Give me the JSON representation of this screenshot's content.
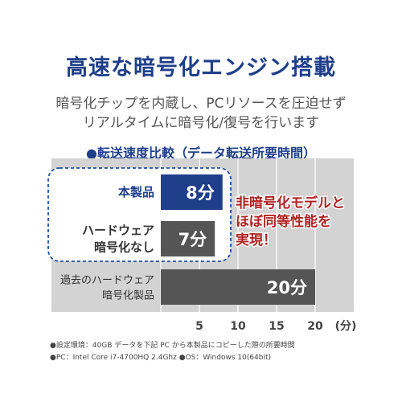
{
  "title": "高速な暗号化エンジン搭載",
  "subtitle_line1": "暗号化チップを内蔵し、PCリソースを圧迫せず",
  "subtitle_line2": "リアルタイムに暗号化/復号を行います",
  "chart_heading": "●転送速度比較（データ転送所要時間）",
  "callout_lines": [
    "非暗号化モデルと",
    "ほぼ同等性能を",
    "実現！"
  ],
  "footnote_line1": "●設定環境：40GB データを下記 PC から本製品にコピーした際の所要時間",
  "footnote_line2": "●PC：Intel Core i7-4700HQ 2.4Ghz ●OS：Windows 10(64bit)",
  "colors": {
    "title": "#1f3f8a",
    "bar_product": "#1f3f8a",
    "bar_other": "#555555",
    "panel": "#d3d3d3",
    "callout": "#b22222",
    "highlight_box": "#1f4f9f"
  },
  "chart_data": {
    "type": "bar",
    "orientation": "horizontal",
    "unit": "(分)",
    "xlim": [
      0,
      22
    ],
    "ticks": [
      5,
      10,
      15,
      20
    ],
    "categories": [
      [
        "本製品"
      ],
      [
        "ハードウェア",
        "暗号化なし"
      ],
      [
        "過去のハードウェア",
        "暗号化製品"
      ]
    ],
    "values": [
      8,
      7,
      20
    ],
    "value_labels": [
      "8分",
      "7分",
      "20分"
    ],
    "highlighted": [
      true,
      true,
      false
    ],
    "grid": true
  }
}
